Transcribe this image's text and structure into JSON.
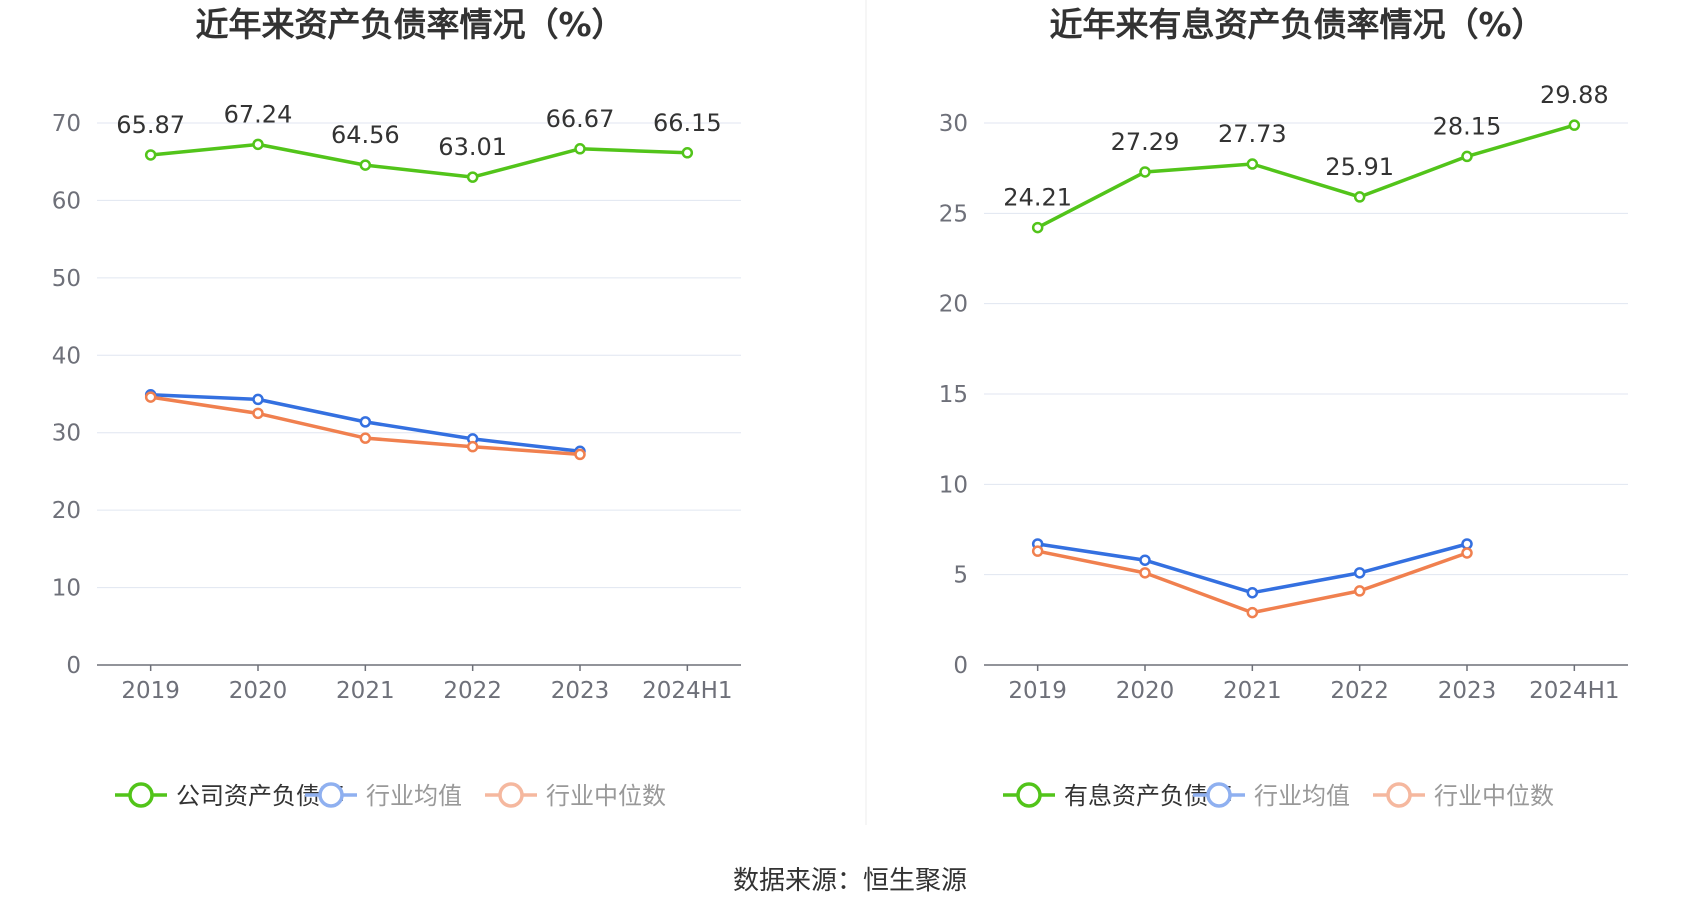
{
  "chart_data": [
    {
      "type": "line",
      "title": "近年来资产负债率情况（%）",
      "categories": [
        "2019",
        "2020",
        "2021",
        "2022",
        "2023",
        "2024H1"
      ],
      "ylim": [
        0,
        70
      ],
      "yticks": [
        0,
        10,
        20,
        30,
        40,
        50,
        60,
        70
      ],
      "grid": true,
      "legend_position": "bottom",
      "series": [
        {
          "name": "公司资产负债率",
          "color": "#52c41a",
          "values": [
            65.87,
            67.24,
            64.56,
            63.01,
            66.67,
            66.15
          ],
          "labels": [
            "65.87",
            "67.24",
            "64.56",
            "63.01",
            "66.67",
            "66.15"
          ]
        },
        {
          "name": "行业均值",
          "color": "#3470e0",
          "values": [
            34.9,
            34.3,
            31.4,
            29.2,
            27.6,
            null
          ]
        },
        {
          "name": "行业中位数",
          "color": "#f0804f",
          "values": [
            34.6,
            32.5,
            29.3,
            28.2,
            27.2,
            null
          ]
        }
      ]
    },
    {
      "type": "line",
      "title": "近年来有息资产负债率情况（%）",
      "categories": [
        "2019",
        "2020",
        "2021",
        "2022",
        "2023",
        "2024H1"
      ],
      "ylim": [
        0,
        30
      ],
      "yticks": [
        0,
        5,
        10,
        15,
        20,
        25,
        30
      ],
      "grid": true,
      "legend_position": "bottom",
      "series": [
        {
          "name": "有息资产负债率",
          "color": "#52c41a",
          "values": [
            24.21,
            27.29,
            27.73,
            25.91,
            28.15,
            29.88
          ],
          "labels": [
            "24.21",
            "27.29",
            "27.73",
            "25.91",
            "28.15",
            "29.88"
          ]
        },
        {
          "name": "行业均值",
          "color": "#3470e0",
          "values": [
            6.7,
            5.8,
            4.0,
            5.1,
            6.7,
            null
          ]
        },
        {
          "name": "行业中位数",
          "color": "#f0804f",
          "values": [
            6.3,
            5.1,
            2.9,
            4.1,
            6.2,
            null
          ]
        }
      ]
    }
  ],
  "footer": {
    "source": "数据来源：恒生聚源"
  }
}
